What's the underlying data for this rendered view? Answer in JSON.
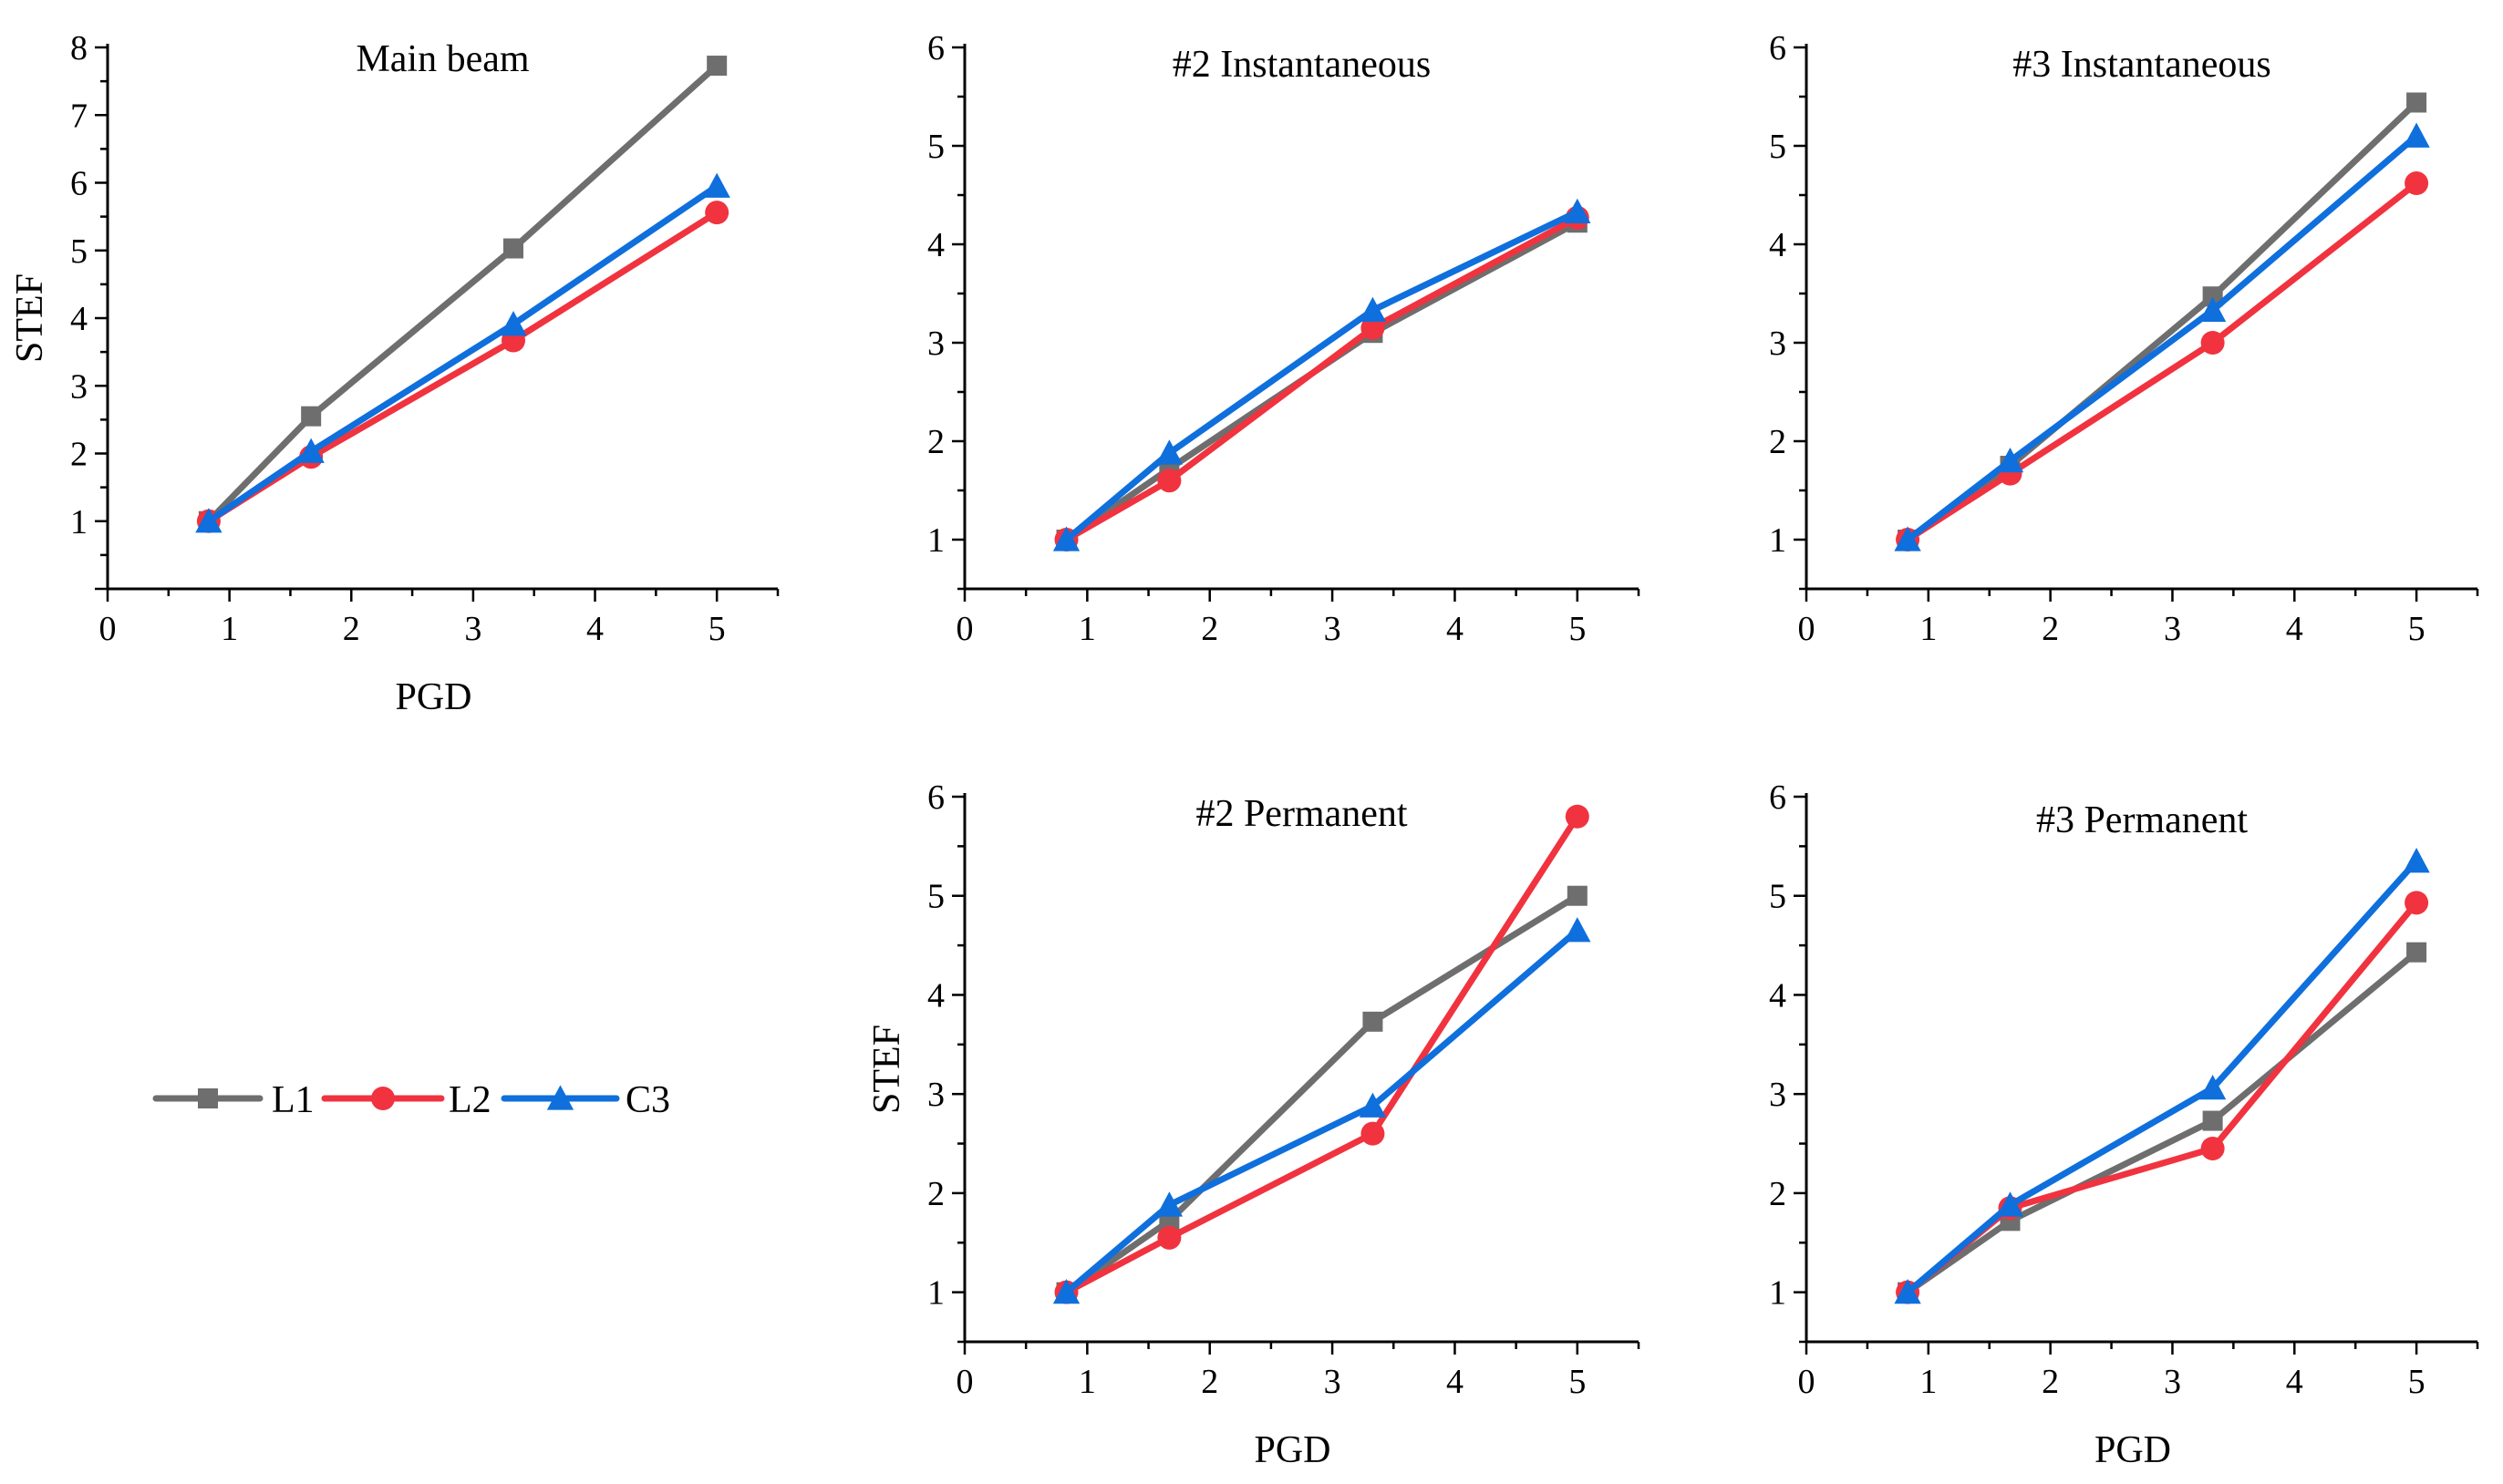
{
  "chart_data": [
    {
      "type": "line",
      "title": "Main beam",
      "xlabel": "PGD",
      "ylabel": "STEF",
      "xlim": [
        0,
        5.5
      ],
      "ylim": [
        0,
        8
      ],
      "xticks": [
        "0",
        "1",
        "2",
        "3",
        "4",
        "5"
      ],
      "yticks": [
        "1",
        "2",
        "3",
        "4",
        "5",
        "6",
        "7",
        "8"
      ],
      "x": [
        0.83,
        1.67,
        3.33,
        5
      ],
      "series": [
        {
          "name": "L1",
          "values": [
            1.0,
            2.55,
            5.03,
            7.73
          ]
        },
        {
          "name": "L2",
          "values": [
            1.0,
            1.95,
            3.67,
            5.56
          ]
        },
        {
          "name": "C3",
          "values": [
            1.0,
            2.03,
            3.91,
            5.95
          ]
        }
      ]
    },
    {
      "type": "line",
      "title": "#2 Instantaneous",
      "xlabel": "",
      "ylabel": "",
      "xlim": [
        0,
        5.5
      ],
      "ylim": [
        0.5,
        6
      ],
      "xticks": [
        "0",
        "1",
        "2",
        "3",
        "4",
        "5"
      ],
      "yticks": [
        "1",
        "2",
        "3",
        "4",
        "5",
        "6"
      ],
      "x": [
        0.83,
        1.67,
        3.33,
        5
      ],
      "series": [
        {
          "name": "L1",
          "values": [
            1.0,
            1.72,
            3.1,
            4.22
          ]
        },
        {
          "name": "L2",
          "values": [
            1.0,
            1.6,
            3.15,
            4.27
          ]
        },
        {
          "name": "C3",
          "values": [
            1.0,
            1.88,
            3.33,
            4.33
          ]
        }
      ]
    },
    {
      "type": "line",
      "title": "#3 Instantaneous",
      "xlabel": "",
      "ylabel": "",
      "xlim": [
        0,
        5.5
      ],
      "ylim": [
        0.5,
        6
      ],
      "xticks": [
        "0",
        "1",
        "2",
        "3",
        "4",
        "5"
      ],
      "yticks": [
        "1",
        "2",
        "3",
        "4",
        "5",
        "6"
      ],
      "x": [
        0.83,
        1.67,
        3.33,
        5
      ],
      "series": [
        {
          "name": "L1",
          "values": [
            1.0,
            1.75,
            3.47,
            5.44
          ]
        },
        {
          "name": "L2",
          "values": [
            1.0,
            1.67,
            3.0,
            4.62
          ]
        },
        {
          "name": "C3",
          "values": [
            1.0,
            1.8,
            3.33,
            5.1
          ]
        }
      ]
    },
    {
      "type": "line",
      "title": "#2 Permanent",
      "xlabel": "PGD",
      "ylabel": "STEF",
      "xlim": [
        0,
        5.5
      ],
      "ylim": [
        0.5,
        6
      ],
      "xticks": [
        "0",
        "1",
        "2",
        "3",
        "4",
        "5"
      ],
      "yticks": [
        "1",
        "2",
        "3",
        "4",
        "5",
        "6"
      ],
      "x": [
        0.83,
        1.67,
        3.33,
        5
      ],
      "series": [
        {
          "name": "L1",
          "values": [
            1.0,
            1.72,
            3.73,
            5.0
          ]
        },
        {
          "name": "L2",
          "values": [
            1.0,
            1.55,
            2.6,
            5.8
          ]
        },
        {
          "name": "C3",
          "values": [
            1.0,
            1.88,
            2.88,
            4.65
          ]
        }
      ]
    },
    {
      "type": "line",
      "title": "#3 Permanent",
      "xlabel": "PGD",
      "ylabel": "",
      "xlim": [
        0,
        5.5
      ],
      "ylim": [
        0.5,
        6
      ],
      "xticks": [
        "0",
        "1",
        "2",
        "3",
        "4",
        "5"
      ],
      "yticks": [
        "1",
        "2",
        "3",
        "4",
        "5",
        "6"
      ],
      "x": [
        0.83,
        1.67,
        3.33,
        5
      ],
      "series": [
        {
          "name": "L1",
          "values": [
            1.0,
            1.72,
            2.73,
            4.43
          ]
        },
        {
          "name": "L2",
          "values": [
            1.0,
            1.85,
            2.45,
            4.93
          ]
        },
        {
          "name": "C3",
          "values": [
            1.0,
            1.88,
            3.06,
            5.35
          ]
        }
      ]
    }
  ],
  "legend": {
    "items": [
      {
        "label": "L1",
        "color": "#6e6e6e",
        "marker": "square"
      },
      {
        "label": "L2",
        "color": "#f0333f",
        "marker": "circle"
      },
      {
        "label": "C3",
        "color": "#0f6fdc",
        "marker": "triangle"
      }
    ]
  },
  "colors": {
    "L1": "#6e6e6e",
    "L2": "#f0333f",
    "C3": "#0f6fdc"
  }
}
